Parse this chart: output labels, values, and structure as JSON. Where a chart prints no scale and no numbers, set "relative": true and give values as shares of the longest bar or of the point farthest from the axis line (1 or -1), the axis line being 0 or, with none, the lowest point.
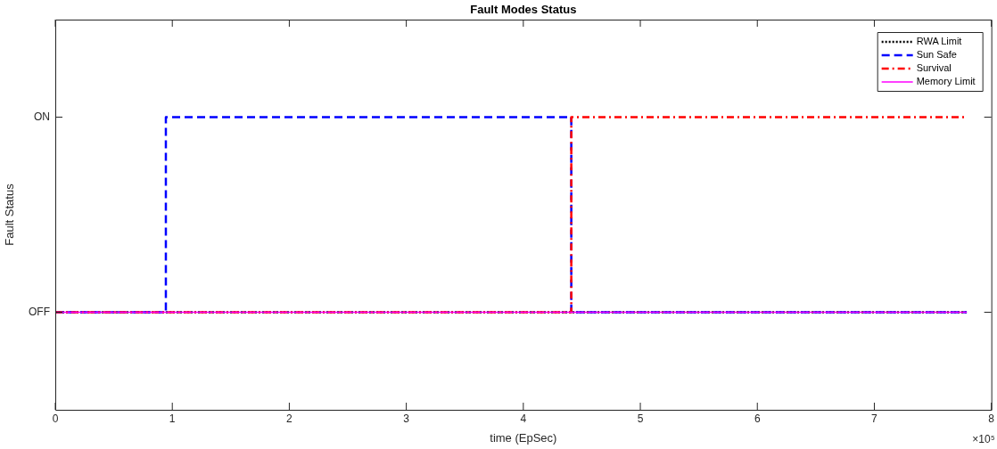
{
  "chart_data": {
    "type": "step",
    "title": "Fault Modes Status",
    "xlabel": "time (EpSec)",
    "ylabel": "Fault Status",
    "xlim": [
      0,
      8
    ],
    "xticks": [
      0,
      1,
      2,
      3,
      4,
      5,
      6,
      7,
      8
    ],
    "relative": true,
    "annotations": [
      "×10⁵",
      "OFF",
      "ON"
    ],
    "legend": "top right",
    "grid": false,
    "marker": "none",
    "series": [
      {
        "name": "RWA Limit",
        "color": "#000000",
        "line_style": "dotted",
        "x": [
          0,
          7.79
        ],
        "values": [
          0,
          0
        ]
      },
      {
        "name": "Sun Safe",
        "color": "#0000ff",
        "line_style": "dashed",
        "x": [
          0,
          0.945,
          4.41,
          7.79
        ],
        "values": [
          0,
          1,
          0,
          0
        ]
      },
      {
        "name": "Survival",
        "color": "#ff0000",
        "line_style": "dashdot",
        "x": [
          0,
          4.41,
          7.79
        ],
        "values": [
          0,
          1,
          1
        ]
      },
      {
        "name": "Memory Limit",
        "color": "#ff00ff",
        "line_style": "solid",
        "x": [
          0,
          7.79
        ],
        "values": [
          0,
          0
        ]
      }
    ]
  }
}
